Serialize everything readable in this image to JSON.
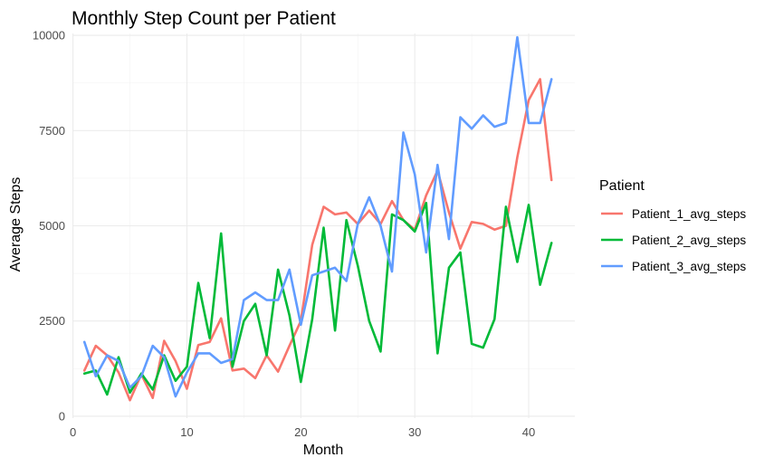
{
  "chart_data": {
    "type": "line",
    "title": "Monthly Step Count per Patient",
    "xlabel": "Month",
    "ylabel": "Average Steps",
    "xlim": [
      -0.05,
      44.05
    ],
    "ylim": [
      -50,
      10050
    ],
    "x_ticks": [
      0,
      10,
      20,
      30,
      40
    ],
    "y_ticks": [
      0,
      2500,
      5000,
      7500,
      10000
    ],
    "x_tick_labels": [
      "0",
      "10",
      "20",
      "30",
      "40"
    ],
    "y_tick_labels": [
      "0",
      "2500",
      "5000",
      "7500",
      "10000"
    ],
    "grid": true,
    "legend_title": "Patient",
    "legend_position": "right",
    "x": [
      1,
      2,
      3,
      4,
      5,
      6,
      7,
      8,
      9,
      10,
      11,
      12,
      13,
      14,
      15,
      16,
      17,
      18,
      19,
      20,
      21,
      22,
      23,
      24,
      25,
      26,
      27,
      28,
      29,
      30,
      31,
      32,
      33,
      34,
      35,
      36,
      37,
      38,
      39,
      40,
      41,
      42
    ],
    "series": [
      {
        "name": "Patient_1_avg_steps",
        "color": "#F8766D",
        "values": [
          1200,
          1850,
          1600,
          1150,
          420,
          1100,
          480,
          1980,
          1450,
          720,
          1870,
          1950,
          2570,
          1200,
          1250,
          1000,
          1600,
          1170,
          1850,
          2500,
          4500,
          5500,
          5300,
          5350,
          5050,
          5400,
          5050,
          5650,
          5150,
          4900,
          5800,
          6450,
          5350,
          4400,
          5100,
          5050,
          4900,
          5000,
          6800,
          8300,
          8850,
          6200
        ]
      },
      {
        "name": "Patient_2_avg_steps",
        "color": "#00BA38",
        "values": [
          1120,
          1200,
          570,
          1550,
          620,
          1120,
          700,
          1600,
          930,
          1300,
          3500,
          2050,
          4800,
          1300,
          2500,
          2950,
          1600,
          3850,
          2650,
          900,
          2550,
          4950,
          2250,
          5150,
          3950,
          2500,
          1700,
          5300,
          5150,
          4850,
          5600,
          1650,
          3900,
          4300,
          1900,
          1800,
          2550,
          5500,
          4050,
          5550,
          3450,
          4550
        ]
      },
      {
        "name": "Patient_3_avg_steps",
        "color": "#619CFF",
        "values": [
          1950,
          1050,
          1600,
          1450,
          750,
          1050,
          1850,
          1550,
          520,
          1150,
          1650,
          1650,
          1400,
          1500,
          3050,
          3250,
          3050,
          3050,
          3850,
          2400,
          3700,
          3800,
          3900,
          3550,
          5050,
          5750,
          5000,
          3800,
          7450,
          6350,
          4300,
          6600,
          4650,
          7850,
          7550,
          7900,
          7600,
          7700,
          9950,
          7700,
          7700,
          8850
        ]
      }
    ]
  }
}
